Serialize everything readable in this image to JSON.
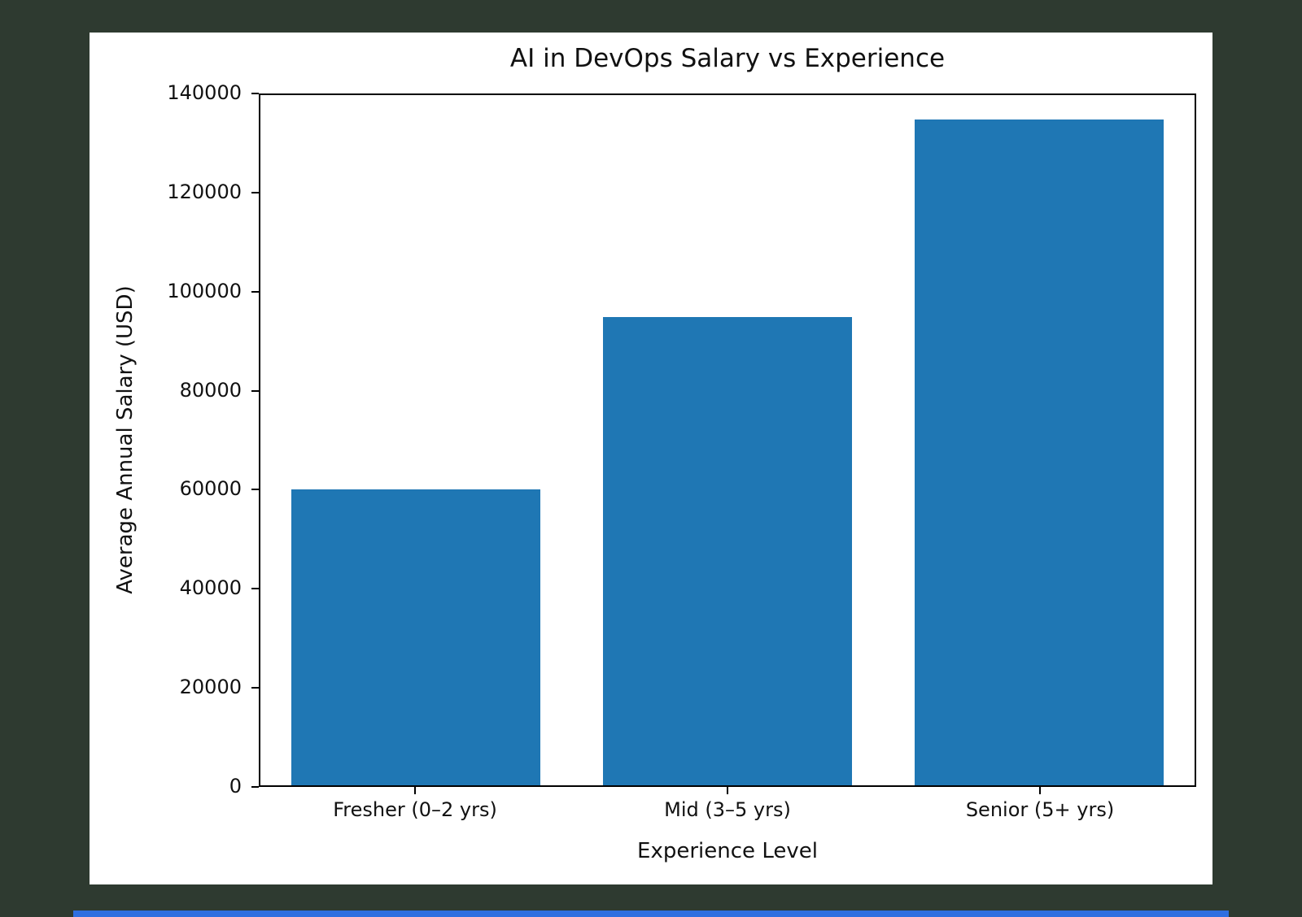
{
  "window": {
    "background_color": "#2e3a30",
    "card_color": "#ffffff",
    "accent_strip_color": "#2f6fe0"
  },
  "chart_data": {
    "type": "bar",
    "title": "AI in DevOps Salary vs Experience",
    "xlabel": "Experience Level",
    "ylabel": "Average Annual Salary (USD)",
    "categories": [
      "Fresher (0–2 yrs)",
      "Mid (3–5 yrs)",
      "Senior (5+ yrs)"
    ],
    "values": [
      60000,
      95000,
      135000
    ],
    "ylim": [
      0,
      140000
    ],
    "yticks": [
      0,
      20000,
      40000,
      60000,
      80000,
      100000,
      120000,
      140000
    ],
    "bar_color": "#1f77b4",
    "grid": "off",
    "legend": "none",
    "bar_width_fraction": 0.8
  }
}
